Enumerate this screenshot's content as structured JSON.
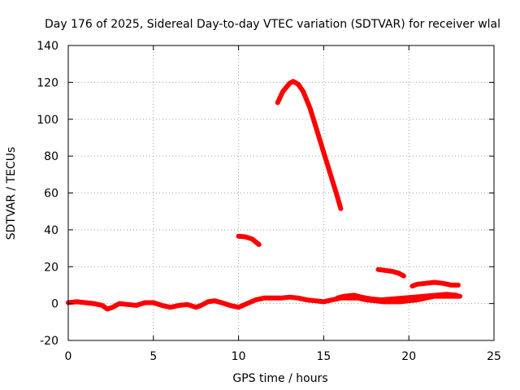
{
  "chart_data": {
    "type": "scatter",
    "title": "Day 176 of 2025, Sidereal Day-to-day VTEC variation (SDTVAR) for receiver wlal",
    "xlabel": "GPS time / hours",
    "ylabel": "SDTVAR / TECUs",
    "xlim": [
      0,
      25
    ],
    "ylim": [
      -20,
      140
    ],
    "xticks": [
      "0",
      "5",
      "10",
      "15",
      "20",
      "25"
    ],
    "yticks": [
      "-20",
      "0",
      "20",
      "40",
      "60",
      "80",
      "100",
      "120",
      "140"
    ],
    "grid": true,
    "color": "#ff0000",
    "series": [
      {
        "points": [
          [
            0,
            0.5
          ],
          [
            0.5,
            1
          ],
          [
            1,
            0.5
          ],
          [
            1.5,
            0
          ],
          [
            2,
            -1
          ],
          [
            2.3,
            -3
          ],
          [
            2.6,
            -2
          ],
          [
            3,
            0
          ],
          [
            3.5,
            -0.5
          ],
          [
            4,
            -1
          ],
          [
            4.5,
            0.5
          ],
          [
            5,
            0.5
          ],
          [
            5.5,
            -1
          ],
          [
            6,
            -2
          ],
          [
            6.5,
            -1
          ],
          [
            7,
            -0.5
          ],
          [
            7.5,
            -2
          ],
          [
            7.8,
            -1
          ],
          [
            8.2,
            1
          ],
          [
            8.6,
            1.5
          ],
          [
            9,
            0.5
          ],
          [
            9.5,
            -1
          ],
          [
            10,
            -2
          ],
          [
            10.5,
            0
          ],
          [
            11,
            2
          ],
          [
            11.5,
            3
          ],
          [
            12,
            3
          ],
          [
            12.5,
            3
          ],
          [
            13,
            3.5
          ],
          [
            13.5,
            3
          ],
          [
            14,
            2
          ],
          [
            14.5,
            1.5
          ],
          [
            15,
            1
          ],
          [
            15.5,
            2
          ],
          [
            16,
            3
          ],
          [
            16.5,
            3
          ],
          [
            17,
            3
          ],
          [
            17.5,
            2
          ],
          [
            18,
            1.5
          ],
          [
            18.5,
            1
          ],
          [
            19,
            1
          ],
          [
            19.5,
            1
          ],
          [
            20,
            1.5
          ],
          [
            20.5,
            2
          ],
          [
            21,
            3
          ],
          [
            21.5,
            4
          ],
          [
            22,
            4
          ],
          [
            22.5,
            4
          ],
          [
            23,
            4
          ]
        ]
      },
      {
        "points": [
          [
            10,
            36.5
          ],
          [
            10.4,
            36.2
          ],
          [
            10.8,
            35
          ],
          [
            11.2,
            32
          ]
        ]
      },
      {
        "points": [
          [
            12.3,
            109
          ],
          [
            12.6,
            115
          ],
          [
            13,
            119.5
          ],
          [
            13.2,
            120.5
          ],
          [
            13.5,
            119
          ],
          [
            13.8,
            115
          ],
          [
            14.2,
            106
          ],
          [
            14.6,
            94
          ],
          [
            15,
            82
          ],
          [
            15.4,
            70
          ],
          [
            15.8,
            58
          ],
          [
            16,
            51.5
          ]
        ]
      },
      {
        "points": [
          [
            18.2,
            18.5
          ],
          [
            18.6,
            18
          ],
          [
            19,
            17.5
          ],
          [
            19.4,
            16.5
          ],
          [
            19.7,
            15
          ]
        ]
      },
      {
        "points": [
          [
            20.2,
            9.5
          ],
          [
            20.5,
            10.5
          ],
          [
            21,
            11
          ],
          [
            21.5,
            11.5
          ],
          [
            22,
            11
          ],
          [
            22.5,
            10
          ],
          [
            22.9,
            10
          ]
        ]
      },
      {
        "points": [
          [
            15.8,
            3
          ],
          [
            16.2,
            4
          ],
          [
            16.8,
            4.5
          ],
          [
            17.2,
            3.5
          ],
          [
            17.8,
            2.5
          ],
          [
            18.4,
            2
          ],
          [
            21.6,
            4.5
          ],
          [
            22.2,
            5
          ],
          [
            22.8,
            4.5
          ]
        ]
      }
    ]
  }
}
